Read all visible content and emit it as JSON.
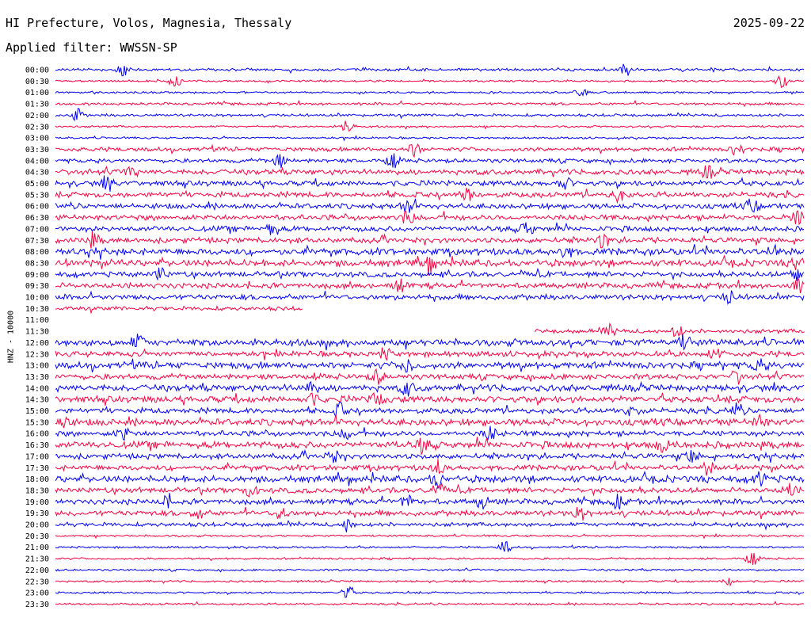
{
  "header": {
    "station": "HI Prefecture, Volos, Magnesia, Thessaly",
    "date": "2025-09-22",
    "filter_label": "Applied filter: WWSSN-SP"
  },
  "colors": {
    "odd": "#0000ff",
    "even": "#ff0040"
  },
  "chart_data": {
    "type": "line",
    "title": "HI Prefecture, Volos, Magnesia, Thessaly",
    "subtitle": "Applied filter: WWSSN-SP",
    "ylabel": "HNZ - 10000",
    "xlabel": "",
    "grid": false,
    "rows": [
      {
        "label": "00:00",
        "amp": 2,
        "fill": 1.0,
        "events": [
          0.09,
          0.76
        ]
      },
      {
        "label": "00:30",
        "amp": 1.5,
        "fill": 1.0,
        "events": [
          0.16,
          0.97
        ]
      },
      {
        "label": "01:00",
        "amp": 1.5,
        "fill": 1.0,
        "events": [
          0.7
        ]
      },
      {
        "label": "01:30",
        "amp": 2,
        "fill": 1.0,
        "events": []
      },
      {
        "label": "02:00",
        "amp": 2,
        "fill": 1.0,
        "events": [
          0.03
        ]
      },
      {
        "label": "02:30",
        "amp": 1.5,
        "fill": 1.0,
        "events": [
          0.39
        ]
      },
      {
        "label": "03:00",
        "amp": 1.5,
        "fill": 1.0,
        "events": []
      },
      {
        "label": "03:30",
        "amp": 3,
        "fill": 1.0,
        "events": [
          0.48,
          0.91
        ]
      },
      {
        "label": "04:00",
        "amp": 3,
        "fill": 1.0,
        "events": [
          0.3,
          0.45
        ]
      },
      {
        "label": "04:30",
        "amp": 4,
        "fill": 1.0,
        "events": [
          0.1,
          0.87
        ]
      },
      {
        "label": "05:00",
        "amp": 4,
        "fill": 1.0,
        "events": [
          0.07,
          0.68
        ]
      },
      {
        "label": "05:30",
        "amp": 4,
        "fill": 1.0,
        "events": [
          0.55,
          0.75
        ]
      },
      {
        "label": "06:00",
        "amp": 4,
        "fill": 1.0,
        "events": [
          0.47,
          0.93
        ]
      },
      {
        "label": "06:30",
        "amp": 4,
        "fill": 1.0,
        "events": [
          0.47,
          0.99
        ]
      },
      {
        "label": "07:00",
        "amp": 4,
        "fill": 1.0,
        "events": [
          0.29,
          0.63
        ]
      },
      {
        "label": "07:30",
        "amp": 4,
        "fill": 1.0,
        "events": [
          0.05,
          0.73
        ]
      },
      {
        "label": "08:00",
        "amp": 5,
        "fill": 1.0,
        "events": [
          0.68,
          0.96
        ]
      },
      {
        "label": "08:30",
        "amp": 5,
        "fill": 1.0,
        "events": [
          0.5,
          0.99
        ]
      },
      {
        "label": "09:00",
        "amp": 4,
        "fill": 1.0,
        "events": [
          0.14,
          0.99
        ]
      },
      {
        "label": "09:30",
        "amp": 4,
        "fill": 1.0,
        "events": [
          0.46,
          0.99
        ]
      },
      {
        "label": "10:00",
        "amp": 4,
        "fill": 1.0,
        "events": [
          0.9
        ]
      },
      {
        "label": "10:30",
        "amp": 3,
        "fill": 0.33,
        "events": []
      },
      {
        "label": "11:00",
        "amp": 0,
        "fill": 0.0,
        "events": []
      },
      {
        "label": "11:30",
        "amp": 3,
        "fill": -0.36,
        "events": [
          0.74,
          0.83
        ]
      },
      {
        "label": "12:00",
        "amp": 5,
        "fill": 1.0,
        "events": [
          0.11,
          0.84
        ]
      },
      {
        "label": "12:30",
        "amp": 4,
        "fill": 1.0,
        "events": [
          0.44,
          0.88
        ]
      },
      {
        "label": "13:00",
        "amp": 5,
        "fill": 1.0,
        "events": [
          0.47,
          0.94
        ]
      },
      {
        "label": "13:30",
        "amp": 4,
        "fill": 1.0,
        "events": [
          0.43,
          0.91
        ]
      },
      {
        "label": "14:00",
        "amp": 5,
        "fill": 1.0,
        "events": [
          0.34,
          0.47
        ]
      },
      {
        "label": "14:30",
        "amp": 5,
        "fill": 1.0,
        "events": [
          0.34,
          0.43
        ]
      },
      {
        "label": "15:00",
        "amp": 4,
        "fill": 1.0,
        "events": [
          0.38,
          0.77,
          0.91
        ]
      },
      {
        "label": "15:30",
        "amp": 5,
        "fill": 1.0,
        "events": [
          0.01,
          0.94
        ]
      },
      {
        "label": "16:00",
        "amp": 4,
        "fill": 1.0,
        "events": [
          0.09,
          0.39,
          0.58
        ]
      },
      {
        "label": "16:30",
        "amp": 5,
        "fill": 1.0,
        "events": [
          0.49,
          0.81
        ]
      },
      {
        "label": "17:00",
        "amp": 4,
        "fill": 1.0,
        "events": [
          0.37,
          0.85
        ]
      },
      {
        "label": "17:30",
        "amp": 4,
        "fill": 1.0,
        "events": [
          0.51,
          0.87
        ]
      },
      {
        "label": "18:00",
        "amp": 5,
        "fill": 1.0,
        "events": [
          0.51,
          0.94
        ]
      },
      {
        "label": "18:30",
        "amp": 4,
        "fill": 1.0,
        "events": [
          0.26,
          0.51,
          0.98
        ]
      },
      {
        "label": "19:00",
        "amp": 4,
        "fill": 1.0,
        "events": [
          0.15,
          0.47,
          0.57,
          0.75
        ]
      },
      {
        "label": "19:30",
        "amp": 4,
        "fill": 1.0,
        "events": [
          0.19,
          0.3,
          0.7
        ]
      },
      {
        "label": "20:00",
        "amp": 3,
        "fill": 1.0,
        "events": [
          0.39
        ]
      },
      {
        "label": "20:30",
        "amp": 1.5,
        "fill": 1.0,
        "events": []
      },
      {
        "label": "21:00",
        "amp": 1.5,
        "fill": 1.0,
        "events": [
          0.6
        ]
      },
      {
        "label": "21:30",
        "amp": 1.5,
        "fill": 1.0,
        "events": [
          0.93
        ]
      },
      {
        "label": "22:00",
        "amp": 1.5,
        "fill": 1.0,
        "events": []
      },
      {
        "label": "22:30",
        "amp": 1.5,
        "fill": 1.0,
        "events": [
          0.9
        ]
      },
      {
        "label": "23:00",
        "amp": 1.5,
        "fill": 1.0,
        "events": [
          0.39
        ]
      },
      {
        "label": "23:30",
        "amp": 1.5,
        "fill": 1.0,
        "events": []
      }
    ]
  }
}
